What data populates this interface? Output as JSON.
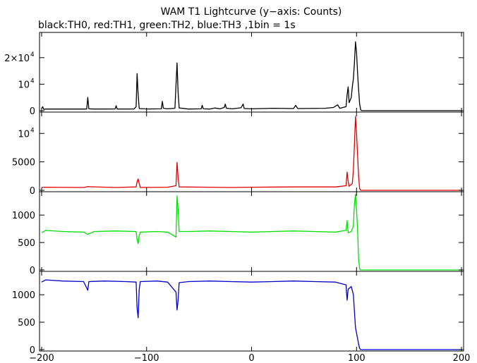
{
  "title": "WAM T1 Lightcurve (y−axis: Counts)",
  "subtitle": "black:TH0, red:TH1, green:TH2, blue:TH3 ,1bin = 1s",
  "colors": {
    "TH0": "#000000",
    "TH1": "#e00000",
    "TH2": "#00e000",
    "TH3": "#0000c8",
    "frame": "#000000",
    "background": "#ffffff"
  },
  "chart_data": [
    {
      "type": "line",
      "series": [
        {
          "color": "#000000",
          "points": [
            [
              -200,
              800
            ],
            [
              -199,
              1500
            ],
            [
              -198,
              500
            ],
            [
              -196,
              600
            ],
            [
              -160,
              650
            ],
            [
              -157,
              600
            ],
            [
              -156,
              5000
            ],
            [
              -155,
              700
            ],
            [
              -150,
              600
            ],
            [
              -130,
              650
            ],
            [
              -129,
              1900
            ],
            [
              -128,
              600
            ],
            [
              -112,
              650
            ],
            [
              -110,
              1500
            ],
            [
              -109,
              14000
            ],
            [
              -108,
              6000
            ],
            [
              -107,
              800
            ],
            [
              -100,
              650
            ],
            [
              -86,
              700
            ],
            [
              -85,
              3500
            ],
            [
              -84,
              900
            ],
            [
              -80,
              700
            ],
            [
              -73,
              900
            ],
            [
              -71,
              18000
            ],
            [
              -70,
              7000
            ],
            [
              -69,
              1000
            ],
            [
              -60,
              600
            ],
            [
              -48,
              700
            ],
            [
              -47,
              2000
            ],
            [
              -46,
              700
            ],
            [
              -40,
              600
            ],
            [
              -35,
              1000
            ],
            [
              -30,
              700
            ],
            [
              -26,
              1200
            ],
            [
              -25,
              2500
            ],
            [
              -24,
              900
            ],
            [
              -18,
              700
            ],
            [
              -10,
              1100
            ],
            [
              -8,
              2500
            ],
            [
              -7,
              800
            ],
            [
              0,
              700
            ],
            [
              10,
              800
            ],
            [
              20,
              900
            ],
            [
              40,
              800
            ],
            [
              42,
              2000
            ],
            [
              44,
              800
            ],
            [
              70,
              900
            ],
            [
              78,
              1200
            ],
            [
              82,
              2200
            ],
            [
              84,
              900
            ],
            [
              90,
              1500
            ],
            [
              91,
              6000
            ],
            [
              92,
              9000
            ],
            [
              93,
              3000
            ],
            [
              95,
              5000
            ],
            [
              96,
              9000
            ],
            [
              97,
              12000
            ],
            [
              98,
              18000
            ],
            [
              99,
              26000
            ],
            [
              100,
              22000
            ],
            [
              101,
              14000
            ],
            [
              102,
              8000
            ],
            [
              103,
              2500
            ],
            [
              104,
              300
            ],
            [
              105,
              0
            ],
            [
              200,
              0
            ]
          ]
        }
      ],
      "ylim": [
        0,
        29000
      ],
      "yticks": [
        {
          "value": 0,
          "label": "0"
        },
        {
          "value": 10000,
          "label": "10",
          "exp": "4"
        },
        {
          "value": 20000,
          "label": "2×10",
          "exp": "4"
        }
      ]
    },
    {
      "type": "line",
      "series": [
        {
          "color": "#e00000",
          "points": [
            [
              -200,
              500
            ],
            [
              -196,
              550
            ],
            [
              -160,
              500
            ],
            [
              -156,
              650
            ],
            [
              -130,
              500
            ],
            [
              -110,
              600
            ],
            [
              -109,
              1500
            ],
            [
              -108,
              2000
            ],
            [
              -107,
              1200
            ],
            [
              -106,
              500
            ],
            [
              -80,
              550
            ],
            [
              -72,
              800
            ],
            [
              -71,
              4900
            ],
            [
              -70,
              2200
            ],
            [
              -69,
              600
            ],
            [
              -40,
              550
            ],
            [
              -20,
              500
            ],
            [
              0,
              550
            ],
            [
              40,
              600
            ],
            [
              80,
              600
            ],
            [
              90,
              800
            ],
            [
              91,
              3200
            ],
            [
              92,
              1600
            ],
            [
              93,
              700
            ],
            [
              96,
              1200
            ],
            [
              97,
              3500
            ],
            [
              98,
              8000
            ],
            [
              99,
              13000
            ],
            [
              100,
              10000
            ],
            [
              101,
              6000
            ],
            [
              102,
              2500
            ],
            [
              103,
              300
            ],
            [
              104,
              0
            ],
            [
              200,
              0
            ]
          ]
        }
      ],
      "ylim": [
        0,
        13500
      ],
      "yticks": [
        {
          "value": 0,
          "label": "0"
        },
        {
          "value": 5000,
          "label": "5000"
        },
        {
          "value": 10000,
          "label": "10",
          "exp": "4"
        }
      ]
    },
    {
      "type": "line",
      "series": [
        {
          "color": "#00e000",
          "points": [
            [
              -200,
              680
            ],
            [
              -196,
              720
            ],
            [
              -180,
              700
            ],
            [
              -160,
              690
            ],
            [
              -156,
              650
            ],
            [
              -150,
              700
            ],
            [
              -130,
              710
            ],
            [
              -110,
              700
            ],
            [
              -109,
              550
            ],
            [
              -108,
              480
            ],
            [
              -107,
              620
            ],
            [
              -106,
              690
            ],
            [
              -90,
              700
            ],
            [
              -80,
              690
            ],
            [
              -72,
              600
            ],
            [
              -71,
              1350
            ],
            [
              -70,
              1100
            ],
            [
              -69,
              700
            ],
            [
              -60,
              700
            ],
            [
              -40,
              710
            ],
            [
              -20,
              700
            ],
            [
              0,
              690
            ],
            [
              20,
              700
            ],
            [
              40,
              710
            ],
            [
              60,
              700
            ],
            [
              80,
              690
            ],
            [
              90,
              720
            ],
            [
              91,
              900
            ],
            [
              92,
              680
            ],
            [
              95,
              700
            ],
            [
              97,
              800
            ],
            [
              98,
              1200
            ],
            [
              99,
              1380
            ],
            [
              100,
              1100
            ],
            [
              101,
              700
            ],
            [
              102,
              200
            ],
            [
              103,
              20
            ],
            [
              104,
              0
            ],
            [
              200,
              0
            ]
          ]
        }
      ],
      "ylim": [
        0,
        1400
      ],
      "yticks": [
        {
          "value": 0,
          "label": "0"
        },
        {
          "value": 500,
          "label": "500"
        },
        {
          "value": 1000,
          "label": "1000"
        }
      ]
    },
    {
      "type": "line",
      "series": [
        {
          "color": "#0000c8",
          "points": [
            [
              -200,
              1230
            ],
            [
              -196,
              1270
            ],
            [
              -180,
              1250
            ],
            [
              -160,
              1240
            ],
            [
              -156,
              1080
            ],
            [
              -155,
              1240
            ],
            [
              -140,
              1250
            ],
            [
              -120,
              1240
            ],
            [
              -110,
              1230
            ],
            [
              -109,
              750
            ],
            [
              -108,
              580
            ],
            [
              -107,
              1100
            ],
            [
              -106,
              1240
            ],
            [
              -90,
              1250
            ],
            [
              -80,
              1230
            ],
            [
              -72,
              1050
            ],
            [
              -71,
              720
            ],
            [
              -70,
              900
            ],
            [
              -69,
              1220
            ],
            [
              -60,
              1240
            ],
            [
              -40,
              1250
            ],
            [
              -20,
              1240
            ],
            [
              0,
              1230
            ],
            [
              20,
              1240
            ],
            [
              40,
              1250
            ],
            [
              60,
              1240
            ],
            [
              80,
              1230
            ],
            [
              90,
              1180
            ],
            [
              91,
              900
            ],
            [
              92,
              1100
            ],
            [
              95,
              1150
            ],
            [
              97,
              1000
            ],
            [
              98,
              700
            ],
            [
              99,
              400
            ],
            [
              100,
              300
            ],
            [
              101,
              200
            ],
            [
              102,
              100
            ],
            [
              103,
              20
            ],
            [
              104,
              0
            ],
            [
              200,
              0
            ]
          ]
        }
      ],
      "ylim": [
        0,
        1400
      ],
      "yticks": [
        {
          "value": 0,
          "label": "0"
        },
        {
          "value": 500,
          "label": "500"
        },
        {
          "value": 1000,
          "label": "1000"
        }
      ]
    }
  ],
  "xaxis": {
    "xlim": [
      -202,
      202
    ],
    "ticks": [
      {
        "value": -200,
        "label": "−200"
      },
      {
        "value": -100,
        "label": "−100"
      },
      {
        "value": 0,
        "label": "0"
      },
      {
        "value": 100,
        "label": "100"
      },
      {
        "value": 200,
        "label": "200"
      }
    ]
  }
}
